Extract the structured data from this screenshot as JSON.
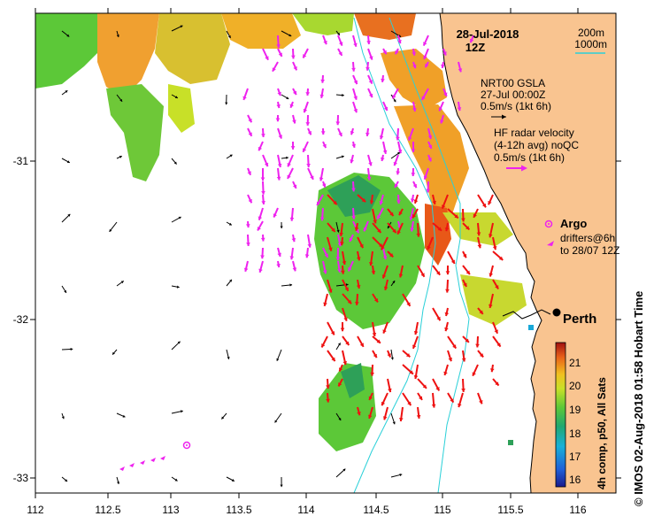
{
  "title": {
    "date": "28-Jul-2018",
    "time": "12Z"
  },
  "depth_legend": {
    "contour_1": "200m",
    "contour_2": "1000m",
    "contour_color": "#2ad0d8"
  },
  "gsla_legend": {
    "product": "NRT00 GSLA",
    "date": "27-Jul 00:00Z",
    "scale": "0.5m/s (1kt 6h)"
  },
  "radar_legend": {
    "line1": "HF radar velocity",
    "line2": "(4-12h avg) noQC",
    "scale": "0.5m/s (1kt 6h)",
    "color": "#ee22ee"
  },
  "argo_legend": {
    "label": "Argo"
  },
  "drifter_legend": {
    "line1": "drifters@6h",
    "line2": "to 28/07 12Z"
  },
  "city": {
    "name": "Perth"
  },
  "side_credit": "© IMOS 02-Aug-2018 01:58 Hobart Time",
  "colorbar": {
    "label": "4h comp, p50, All Sats",
    "ticks": [
      "21",
      "20",
      "19",
      "18",
      "17",
      "16"
    ],
    "min": 15.5,
    "max": 21.8
  },
  "x_axis": {
    "ticks": [
      "112",
      "112.5",
      "113",
      "113.5",
      "114",
      "114.5",
      "115",
      "115.5",
      "116"
    ]
  },
  "y_axis": {
    "ticks": [
      "-31",
      "-32",
      "-33"
    ]
  },
  "colors": {
    "land": "#f9c490",
    "coast": "#000000",
    "radar_arrow": "#ee22ee",
    "model_arrow_red": "#ee1111"
  }
}
